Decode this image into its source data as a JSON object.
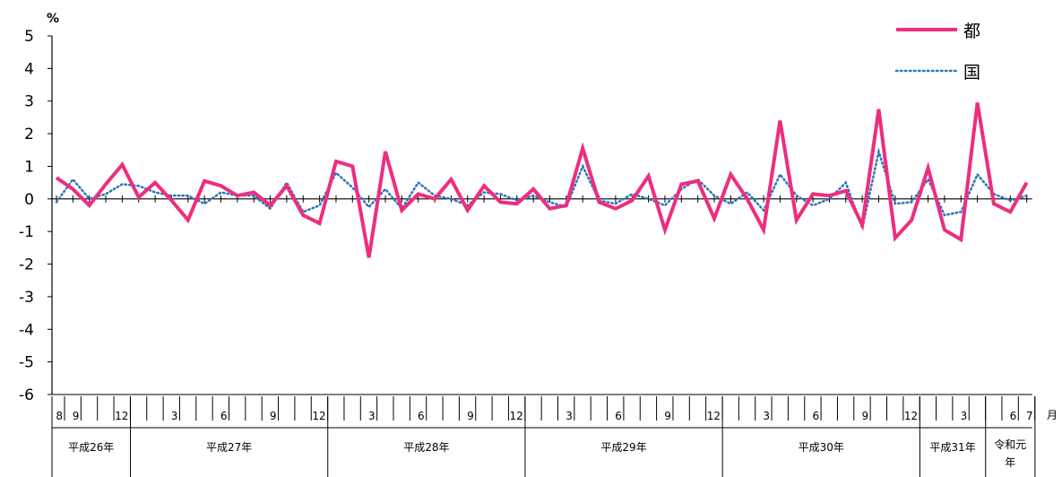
{
  "chart_data": {
    "type": "line",
    "title": "",
    "y_unit_label": "%",
    "x_unit_label": "月",
    "ylim": [
      -6,
      5
    ],
    "y_ticks": [
      "5",
      "4",
      "3",
      "2",
      "1",
      "0",
      "-1",
      "-2",
      "-3",
      "-4",
      "-5",
      "-6"
    ],
    "month_labels": [
      {
        "index": 0,
        "text": "8"
      },
      {
        "index": 1,
        "text": "9"
      },
      {
        "index": 4,
        "text": "12"
      },
      {
        "index": 7,
        "text": "3"
      },
      {
        "index": 10,
        "text": "6"
      },
      {
        "index": 13,
        "text": "9"
      },
      {
        "index": 16,
        "text": "12"
      },
      {
        "index": 19,
        "text": "3"
      },
      {
        "index": 22,
        "text": "6"
      },
      {
        "index": 25,
        "text": "9"
      },
      {
        "index": 28,
        "text": "12"
      },
      {
        "index": 31,
        "text": "3"
      },
      {
        "index": 34,
        "text": "6"
      },
      {
        "index": 37,
        "text": "9"
      },
      {
        "index": 40,
        "text": "12"
      },
      {
        "index": 43,
        "text": "3"
      },
      {
        "index": 46,
        "text": "6"
      },
      {
        "index": 49,
        "text": "9"
      },
      {
        "index": 52,
        "text": "12"
      },
      {
        "index": 55,
        "text": "3"
      },
      {
        "index": 58,
        "text": "6"
      },
      {
        "index": 59,
        "text": "7"
      }
    ],
    "year_groups": [
      {
        "label": "平成26年",
        "start": 0,
        "end": 4
      },
      {
        "label": "平成27年",
        "start": 5,
        "end": 16
      },
      {
        "label": "平成28年",
        "start": 17,
        "end": 28
      },
      {
        "label": "平成29年",
        "start": 29,
        "end": 40
      },
      {
        "label": "平成30年",
        "start": 41,
        "end": 52
      },
      {
        "label": "平成31年",
        "start": 53,
        "end": 56
      },
      {
        "label": "令和元年",
        "start": 57,
        "end": 59
      }
    ],
    "legend_position": "top-right",
    "series": [
      {
        "name": "都",
        "color": "#ee2d7f",
        "style": "solid",
        "values": [
          0.65,
          0.3,
          -0.2,
          0.45,
          1.05,
          0.05,
          0.5,
          -0.05,
          -0.65,
          0.55,
          0.4,
          0.1,
          0.2,
          -0.2,
          0.4,
          -0.5,
          -0.75,
          1.15,
          1.0,
          -1.8,
          1.45,
          -0.35,
          0.15,
          0.0,
          0.6,
          -0.35,
          0.4,
          -0.1,
          -0.15,
          0.3,
          -0.3,
          -0.2,
          1.55,
          -0.1,
          -0.3,
          -0.05,
          0.7,
          -0.95,
          0.45,
          0.55,
          -0.6,
          0.75,
          0.0,
          -0.95,
          2.4,
          -0.65,
          0.15,
          0.1,
          0.25,
          -0.8,
          2.75,
          -1.2,
          -0.65,
          0.95,
          -0.95,
          -1.25,
          2.95,
          -0.15,
          -0.4,
          0.5
        ]
      },
      {
        "name": "国",
        "color": "#2e75b6",
        "style": "dotted",
        "values": [
          -0.1,
          0.6,
          0.0,
          0.15,
          0.45,
          0.4,
          0.2,
          0.1,
          0.1,
          -0.15,
          0.2,
          0.1,
          0.1,
          -0.3,
          0.5,
          -0.4,
          -0.2,
          0.8,
          0.35,
          -0.25,
          0.3,
          -0.3,
          0.5,
          0.1,
          0.0,
          -0.2,
          0.2,
          0.15,
          -0.05,
          0.1,
          -0.1,
          -0.25,
          1.0,
          -0.05,
          -0.15,
          0.15,
          0.0,
          -0.2,
          0.3,
          0.6,
          0.1,
          -0.15,
          0.2,
          -0.35,
          0.75,
          0.1,
          -0.2,
          0.0,
          0.5,
          -0.9,
          1.45,
          -0.15,
          -0.1,
          0.6,
          -0.5,
          -0.4,
          0.75,
          0.15,
          -0.05,
          0.1
        ]
      }
    ]
  }
}
